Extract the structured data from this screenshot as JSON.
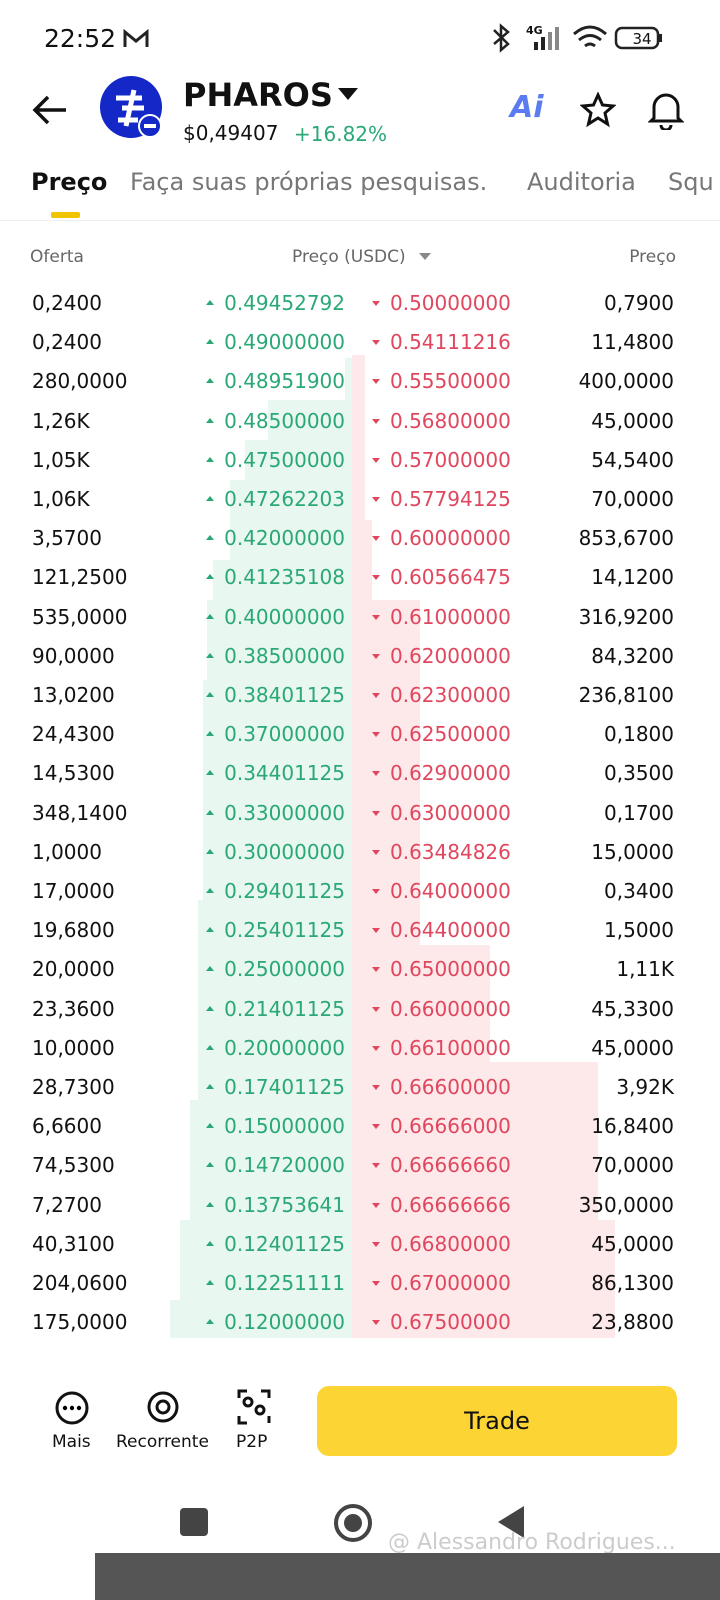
{
  "status_bar": {
    "time": "22:52",
    "network": "4G",
    "battery": "34"
  },
  "header": {
    "symbol": "PHAROS",
    "price": "$0,49407",
    "change": "+16.82%",
    "ai": "Ai"
  },
  "tabs": [
    "Preço",
    "Faça suas próprias pesquisas.",
    "Auditoria",
    "Squ"
  ],
  "order_book": {
    "columns": [
      "Oferta",
      "Preço (USDC)",
      "Preço"
    ],
    "rows": [
      [
        "0,2400",
        "0.49452792",
        "0.50000000",
        "0,7900"
      ],
      [
        "0,2400",
        "0.49000000",
        "0.54111216",
        "11,4800"
      ],
      [
        "280,0000",
        "0.48951900",
        "0.55500000",
        "400,0000"
      ],
      [
        "1,26K",
        "0.48500000",
        "0.56800000",
        "45,0000"
      ],
      [
        "1,05K",
        "0.47500000",
        "0.57000000",
        "54,5400"
      ],
      [
        "1,06K",
        "0.47262203",
        "0.57794125",
        "70,0000"
      ],
      [
        "3,5700",
        "0.42000000",
        "0.60000000",
        "853,6700"
      ],
      [
        "121,2500",
        "0.41235108",
        "0.60566475",
        "14,1200"
      ],
      [
        "535,0000",
        "0.40000000",
        "0.61000000",
        "316,9200"
      ],
      [
        "90,0000",
        "0.38500000",
        "0.62000000",
        "84,3200"
      ],
      [
        "13,0200",
        "0.38401125",
        "0.62300000",
        "236,8100"
      ],
      [
        "24,4300",
        "0.37000000",
        "0.62500000",
        "0,1800"
      ],
      [
        "14,5300",
        "0.34401125",
        "0.62900000",
        "0,3500"
      ],
      [
        "348,1400",
        "0.33000000",
        "0.63000000",
        "0,1700"
      ],
      [
        "1,0000",
        "0.30000000",
        "0.63484826",
        "15,0000"
      ],
      [
        "17,0000",
        "0.29401125",
        "0.64000000",
        "0,3400"
      ],
      [
        "19,6800",
        "0.25401125",
        "0.64400000",
        "1,5000"
      ],
      [
        "20,0000",
        "0.25000000",
        "0.65000000",
        "1,11K"
      ],
      [
        "23,3600",
        "0.21401125",
        "0.66000000",
        "45,3300"
      ],
      [
        "10,0000",
        "0.20000000",
        "0.66100000",
        "45,0000"
      ],
      [
        "28,7300",
        "0.17401125",
        "0.66600000",
        "3,92K"
      ],
      [
        "6,6600",
        "0.15000000",
        "0.66666000",
        "16,8400"
      ],
      [
        "74,5300",
        "0.14720000",
        "0.66666660",
        "70,0000"
      ],
      [
        "7,2700",
        "0.13753641",
        "0.66666666",
        "350,0000"
      ],
      [
        "40,3100",
        "0.12401125",
        "0.66800000",
        "45,0000"
      ],
      [
        "204,0600",
        "0.12251111",
        "0.67000000",
        "86,1300"
      ],
      [
        "175,0000",
        "0.12000000",
        "0.67500000",
        "23,8800"
      ]
    ]
  },
  "bottom_bar": {
    "items": [
      "Mais",
      "Recorrente",
      "P2P"
    ],
    "trade": "Trade"
  },
  "watermark": "@ Alessandro Rodrigues..."
}
